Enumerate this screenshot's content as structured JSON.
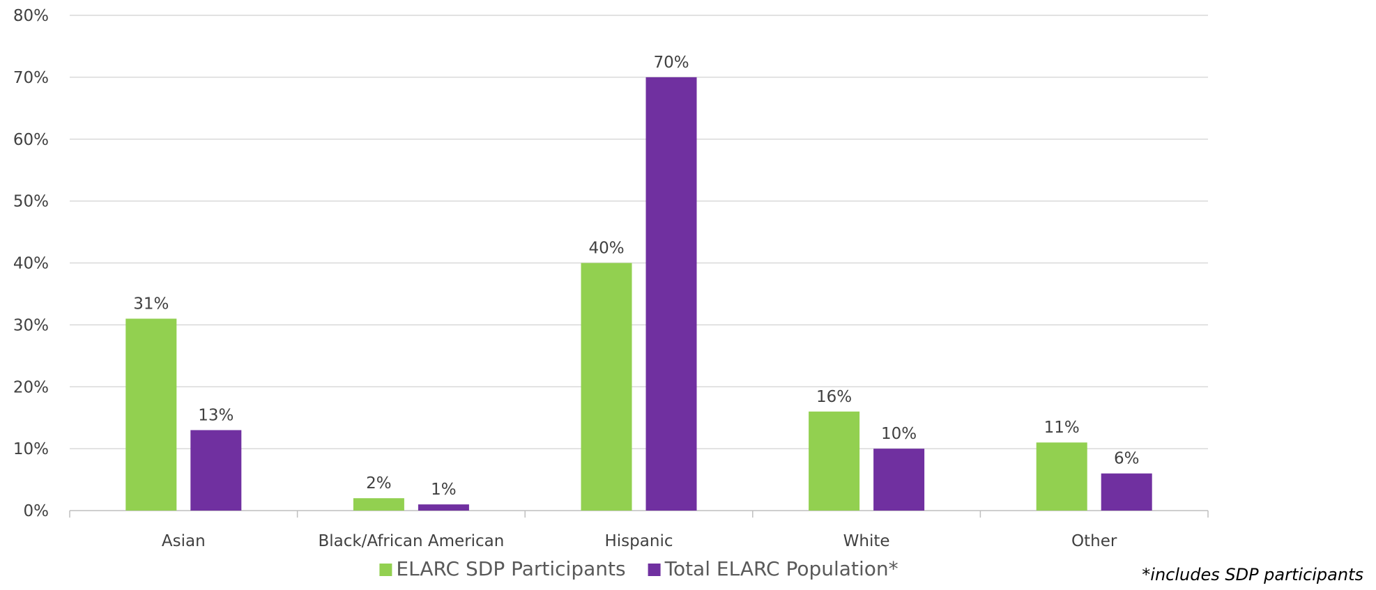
{
  "chart_data": {
    "type": "bar",
    "categories": [
      "Asian",
      "Black/African American",
      "Hispanic",
      "White",
      "Other"
    ],
    "series": [
      {
        "name": "ELARC SDP Participants",
        "values": [
          31,
          2,
          40,
          16,
          11
        ],
        "labels": [
          "31%",
          "2%",
          "40%",
          "16%",
          "11%"
        ],
        "color": "#92D050"
      },
      {
        "name": "Total ELARC Population*",
        "values": [
          13,
          1,
          70,
          10,
          6
        ],
        "labels": [
          "13%",
          "1%",
          "70%",
          "10%",
          "6%"
        ],
        "color": "#7030A0"
      }
    ],
    "y_ticks": [
      "0%",
      "10%",
      "20%",
      "30%",
      "40%",
      "50%",
      "60%",
      "70%",
      "80%"
    ],
    "ylim": [
      0,
      80
    ],
    "grid": true,
    "legend": "bottom",
    "footnote": "*includes SDP participants"
  },
  "colors": {
    "gridline": "#D9D9D9",
    "axis": "#BFBFBF",
    "text": "#404040"
  }
}
